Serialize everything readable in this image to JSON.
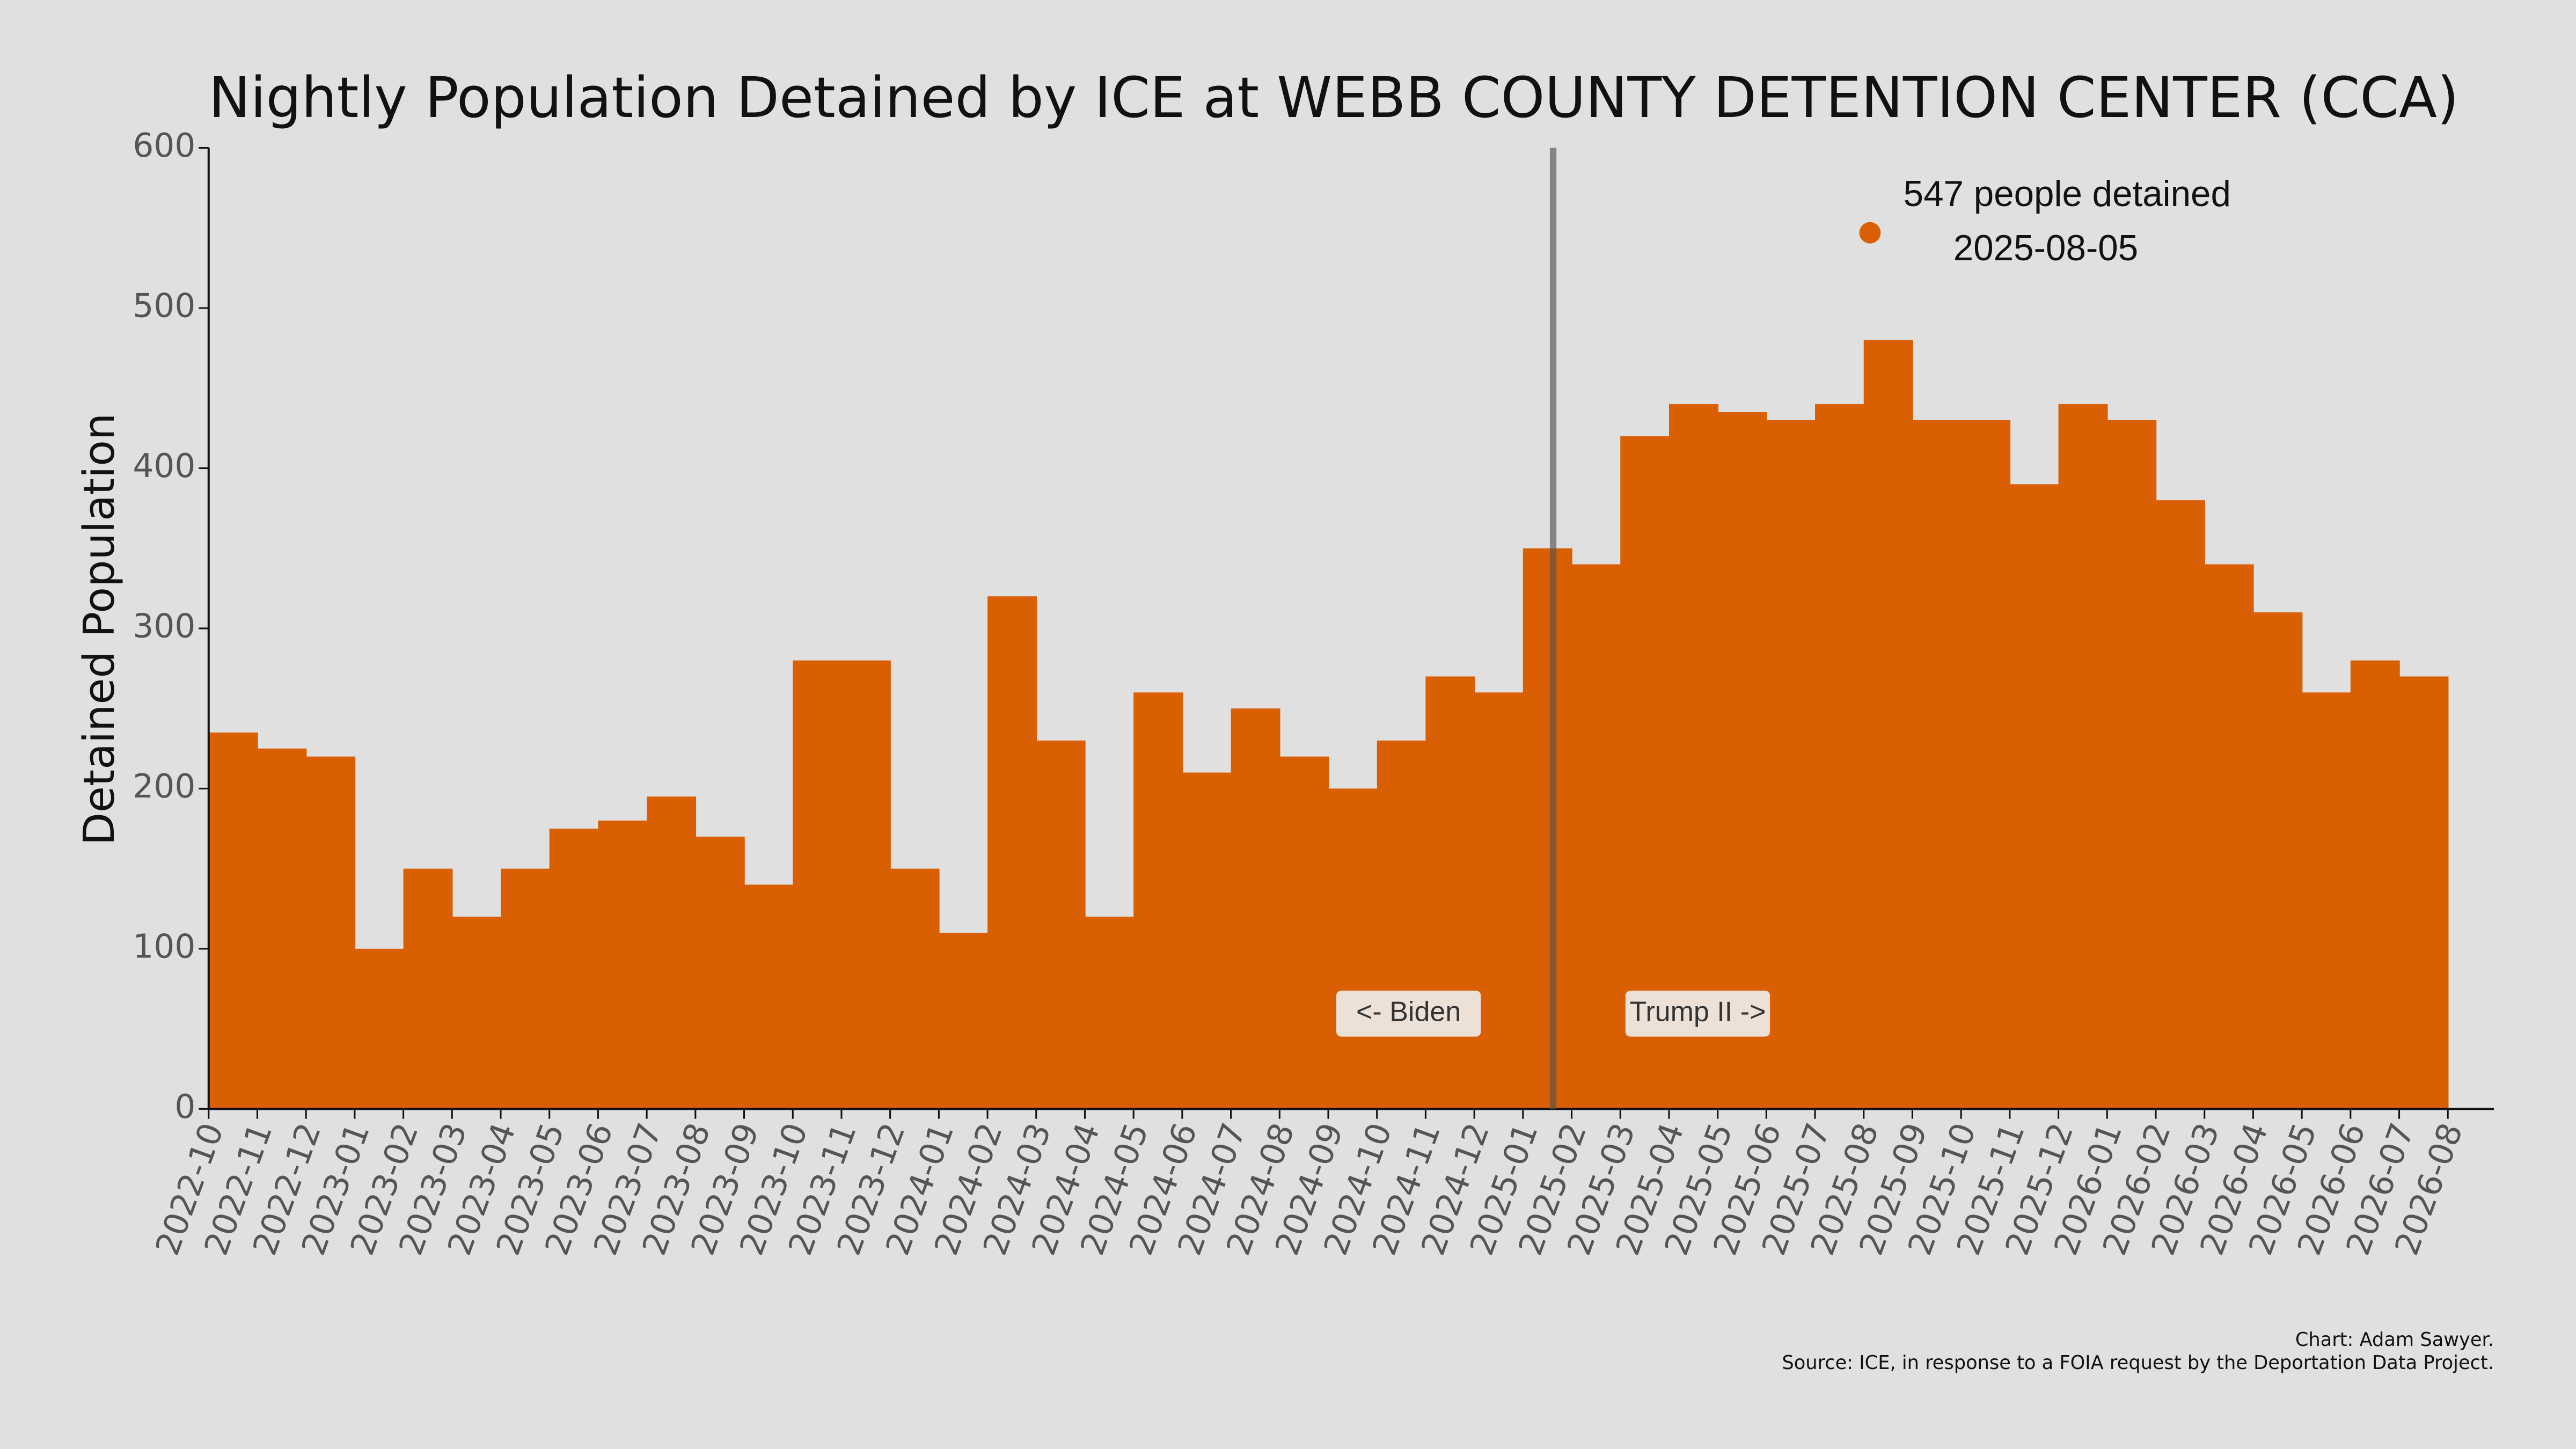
{
  "chart_data": {
    "type": "area",
    "title": "Nightly Population Detained by ICE at WEBB COUNTY DETENTION CENTER (CCA)",
    "y_label": "Detained Population",
    "color": "#d95f02",
    "series": [
      {
        "name": "Detained Population",
        "color": "#d95f02",
        "x": [
          "2022-10",
          "2022-11",
          "2022-12",
          "2023-01",
          "2023-02",
          "2023-03",
          "2023-04",
          "2023-05",
          "2023-06",
          "2023-07",
          "2023-08",
          "2023-09",
          "2023-10",
          "2023-11",
          "2023-12",
          "2024-01",
          "2024-02",
          "2024-03",
          "2024-04",
          "2024-05",
          "2024-06",
          "2024-07",
          "2024-08",
          "2024-09",
          "2024-10",
          "2024-11",
          "2024-12",
          "2025-01",
          "2025-02",
          "2025-03",
          "2025-04",
          "2025-05",
          "2025-06",
          "2025-07",
          "2025-08",
          "2025-09",
          "2025-10",
          "2025-11",
          "2025-12",
          "2026-01",
          "2026-02",
          "2026-03",
          "2026-04",
          "2026-05",
          "2026-06",
          "2026-07"
        ],
        "values": [
          235,
          225,
          220,
          100,
          150,
          120,
          150,
          175,
          180,
          195,
          170,
          140,
          280,
          280,
          150,
          110,
          320,
          230,
          120,
          260,
          210,
          250,
          220,
          200,
          230,
          270,
          260,
          350,
          340,
          420,
          440,
          435,
          430,
          440,
          480,
          430,
          430,
          390,
          440,
          430,
          380,
          340,
          310,
          260,
          280,
          270
        ]
      }
    ],
    "xlim": [
      "2022-10",
      "2026-08"
    ],
    "xticks": [
      "2022-10",
      "2022-11",
      "2022-12",
      "2023-01",
      "2023-02",
      "2023-03",
      "2023-04",
      "2023-05",
      "2023-06",
      "2023-07",
      "2023-08",
      "2023-09",
      "2023-10",
      "2023-11",
      "2023-12",
      "2024-01",
      "2024-02",
      "2024-03",
      "2024-04",
      "2024-05",
      "2024-06",
      "2024-07",
      "2024-08",
      "2024-09",
      "2024-10",
      "2024-11",
      "2024-12",
      "2025-01",
      "2025-02",
      "2025-03",
      "2025-04",
      "2025-05",
      "2025-06",
      "2025-07",
      "2025-08",
      "2025-09",
      "2025-10",
      "2025-11",
      "2025-12",
      "2026-01",
      "2026-02",
      "2026-03",
      "2026-04",
      "2026-05",
      "2026-06",
      "2026-07",
      "2026-08"
    ],
    "ylim": [
      0,
      600
    ],
    "yticks": [
      0,
      100,
      200,
      300,
      400,
      500,
      600
    ],
    "grid": false,
    "peak": {
      "value": 547,
      "label": "547 people detained",
      "date": "2025-08-05"
    },
    "left_label": "<- Biden",
    "right_label": "Trump II ->",
    "credit": "Chart: Adam Sawyer.",
    "source": "Source: ICE, in response to a FOIA request by the Deportation Data Project."
  }
}
